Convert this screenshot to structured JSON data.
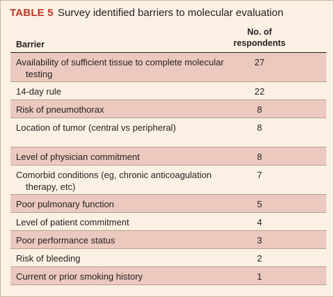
{
  "table": {
    "label": "TABLE 5",
    "caption": "Survey identified barriers to molecular evaluation",
    "columns": {
      "barrier": "Barrier",
      "count_line1": "No. of",
      "count_line2": "respondents"
    },
    "rows": [
      {
        "barrier": "Availability of sufficient tissue to complete molecular testing",
        "count": "27"
      },
      {
        "barrier": "14-day rule",
        "count": "22"
      },
      {
        "barrier": "Risk of pneumothorax",
        "count": "8"
      },
      {
        "barrier": "Location of tumor (central vs peripheral)",
        "count": "8"
      },
      {
        "barrier": "Level of physician commitment",
        "count": "8"
      },
      {
        "barrier": "Comorbid conditions (eg, chronic anticoagulation therapy, etc)",
        "count": "7"
      },
      {
        "barrier": "Poor pulmonary function",
        "count": "5"
      },
      {
        "barrier": "Level of patient commitment",
        "count": "4"
      },
      {
        "barrier": "Poor performance status",
        "count": "3"
      },
      {
        "barrier": "Risk of bleeding",
        "count": "2"
      },
      {
        "barrier": "Current or prior smoking history",
        "count": "1"
      }
    ]
  }
}
